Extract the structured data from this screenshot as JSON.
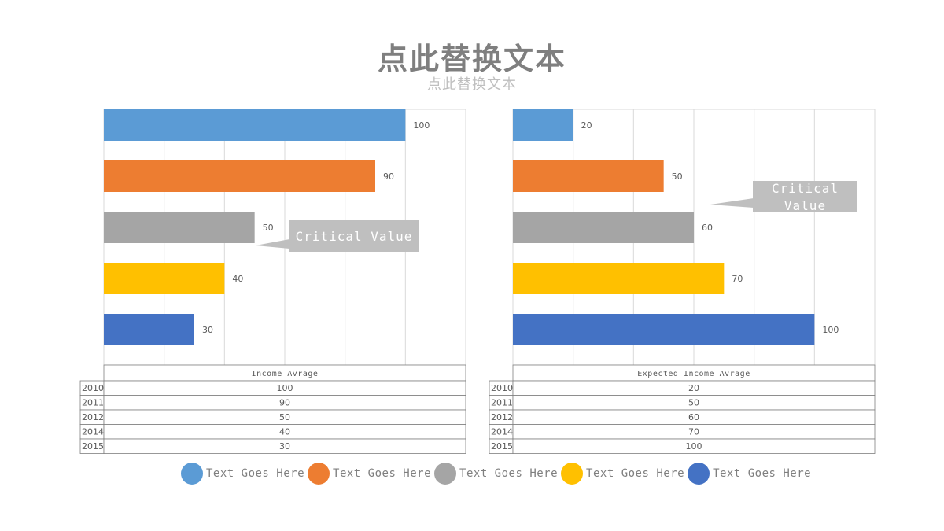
{
  "header": {
    "title": "点此替换文本",
    "subtitle": "点此替换文本"
  },
  "chart_data": [
    {
      "type": "bar",
      "orientation": "horizontal",
      "table_header": "Income Avrage",
      "categories": [
        "2010",
        "2011",
        "2012",
        "2014",
        "2015"
      ],
      "values": [
        100,
        90,
        50,
        40,
        30
      ],
      "colors": [
        "#5b9bd5",
        "#ed7d31",
        "#a5a5a5",
        "#ffc000",
        "#4472c4"
      ],
      "xlim": [
        0,
        120
      ],
      "grid": true,
      "callout": {
        "text": [
          "Critical Value"
        ],
        "target_index": 2
      }
    },
    {
      "type": "bar",
      "orientation": "horizontal",
      "table_header": "Expected Income Avrage",
      "categories": [
        "2010",
        "2011",
        "2012",
        "2014",
        "2015"
      ],
      "values": [
        20,
        50,
        60,
        70,
        100
      ],
      "colors": [
        "#5b9bd5",
        "#ed7d31",
        "#a5a5a5",
        "#ffc000",
        "#4472c4"
      ],
      "xlim": [
        0,
        120
      ],
      "grid": true,
      "callout": {
        "text": [
          "Critical",
          "Value"
        ],
        "target_index": 1
      }
    }
  ],
  "legend": {
    "placement": "bottom",
    "items": [
      {
        "label": "Text Goes Here",
        "color": "#5b9bd5"
      },
      {
        "label": "Text Goes Here",
        "color": "#ed7d31"
      },
      {
        "label": "Text Goes Here",
        "color": "#a5a5a5"
      },
      {
        "label": "Text Goes Here",
        "color": "#ffc000"
      },
      {
        "label": "Text Goes Here",
        "color": "#4472c4"
      }
    ]
  }
}
